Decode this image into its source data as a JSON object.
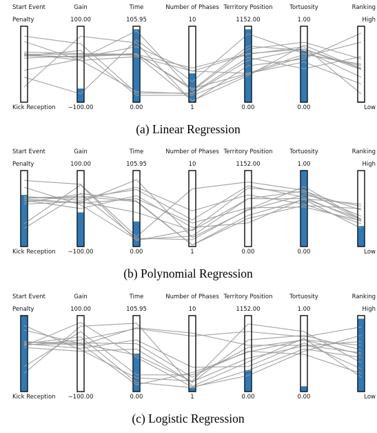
{
  "colors": {
    "fill": "#2e7ab8",
    "line": "#9a9a9a",
    "axis": "#000000"
  },
  "axes": [
    {
      "label": "Start Event",
      "top": "Penalty",
      "bottom": "Kick Reception"
    },
    {
      "label": "Gain",
      "top": "100.00",
      "bottom": "−100.00"
    },
    {
      "label": "Time",
      "top": "105.95",
      "bottom": "0.00"
    },
    {
      "label": "Number of Phases",
      "top": "10",
      "bottom": "1"
    },
    {
      "label": "Territory Position",
      "top": "1152.00",
      "bottom": "0.00"
    },
    {
      "label": "Tortuosity",
      "top": "1.00",
      "bottom": "0.00"
    },
    {
      "label": "Ranking",
      "top": "High",
      "bottom": "Low"
    }
  ],
  "chart_data": [
    {
      "type": "parallel-coordinates",
      "caption": "(a)  Linear Regression",
      "fill_fraction": [
        0.0,
        0.18,
        0.96,
        0.38,
        0.96,
        0.68,
        0.01
      ],
      "lines": [
        [
          0.42,
          0.57,
          0.94,
          0.15,
          0.7,
          0.79,
          0.57
        ],
        [
          0.2,
          0.87,
          0.78,
          0.01,
          0.48,
          0.57,
          0.91
        ],
        [
          0.58,
          0.61,
          0.64,
          0.16,
          0.74,
          0.68,
          0.33
        ],
        [
          0.61,
          0.68,
          0.09,
          0.09,
          0.37,
          0.6,
          0.79
        ],
        [
          0.66,
          0.64,
          0.63,
          0.45,
          0.64,
          0.7,
          0.45
        ],
        [
          0.33,
          0.11,
          0.82,
          0.27,
          0.9,
          0.64,
          0.48
        ],
        [
          0.61,
          0.6,
          0.63,
          0.18,
          0.38,
          0.53,
          0.24
        ],
        [
          0.63,
          0.63,
          0.62,
          0.02,
          0.35,
          0.75,
          0.44
        ],
        [
          0.87,
          0.77,
          0.12,
          0.12,
          0.59,
          0.44,
          0.6
        ],
        [
          0.8,
          0.55,
          0.14,
          0.11,
          0.55,
          0.7,
          0.43
        ],
        [
          0.64,
          0.55,
          0.6,
          0.41,
          0.38,
          0.63,
          0.5
        ],
        [
          0.62,
          0.59,
          0.73,
          0.41,
          0.63,
          0.73,
          0.11
        ]
      ]
    },
    {
      "type": "parallel-coordinates",
      "caption": "(b)  Polynomial Regression",
      "fill_fraction": [
        0.68,
        0.45,
        0.33,
        0.0,
        0.0,
        1.0,
        0.27
      ],
      "lines": [
        [
          0.61,
          0.58,
          0.88,
          0.12,
          0.48,
          0.68,
          0.53
        ],
        [
          0.24,
          0.7,
          0.6,
          0.02,
          0.41,
          0.62,
          0.24
        ],
        [
          0.58,
          0.69,
          0.11,
          0.09,
          0.49,
          0.79,
          0.36
        ],
        [
          0.64,
          0.64,
          0.75,
          0.35,
          0.8,
          0.65,
          0.33
        ],
        [
          0.56,
          0.59,
          0.45,
          0.21,
          0.63,
          0.73,
          0.48
        ],
        [
          0.3,
          0.81,
          0.08,
          0.22,
          0.77,
          0.71,
          0.4
        ],
        [
          0.64,
          0.66,
          0.59,
          0.02,
          0.37,
          0.54,
          0.5
        ],
        [
          0.63,
          0.57,
          0.63,
          0.31,
          0.51,
          0.52,
          0.34
        ],
        [
          0.87,
          0.82,
          0.13,
          0.76,
          0.85,
          0.74,
          0.35
        ],
        [
          0.78,
          0.55,
          0.09,
          0.14,
          0.63,
          0.63,
          0.36
        ],
        [
          0.61,
          0.5,
          0.67,
          0.25,
          0.31,
          0.63,
          0.56
        ],
        [
          0.66,
          0.61,
          0.78,
          0.47,
          0.68,
          0.56,
          0.3
        ]
      ]
    },
    {
      "type": "parallel-coordinates",
      "caption": "(c)  Logistic Regression",
      "fill_fraction": [
        1.0,
        0.0,
        0.5,
        0.05,
        0.28,
        0.07,
        0.96
      ],
      "lines": [
        [
          0.6,
          0.91,
          0.45,
          0.06,
          0.21,
          0.53,
          0.74
        ],
        [
          0.24,
          0.86,
          0.9,
          0.07,
          0.39,
          0.7,
          0.19
        ],
        [
          0.61,
          0.68,
          0.83,
          0.73,
          0.79,
          0.72,
          0.85
        ],
        [
          0.65,
          0.64,
          0.63,
          0.19,
          0.58,
          0.68,
          0.61
        ],
        [
          0.63,
          0.72,
          0.12,
          0.05,
          0.28,
          0.56,
          0.45
        ],
        [
          0.33,
          0.79,
          0.22,
          0.22,
          0.53,
          0.49,
          0.24
        ],
        [
          0.62,
          0.63,
          0.48,
          0.13,
          0.44,
          0.6,
          0.66
        ],
        [
          0.58,
          0.53,
          0.56,
          0.12,
          0.68,
          0.74,
          0.55
        ],
        [
          0.87,
          0.55,
          0.18,
          0.14,
          0.89,
          0.79,
          0.38
        ],
        [
          0.81,
          0.63,
          0.09,
          0.25,
          0.52,
          0.68,
          0.49
        ],
        [
          0.63,
          0.57,
          0.68,
          0.32,
          0.33,
          0.64,
          0.3
        ],
        [
          0.66,
          0.61,
          0.84,
          0.77,
          0.61,
          0.61,
          0.51
        ]
      ]
    }
  ]
}
